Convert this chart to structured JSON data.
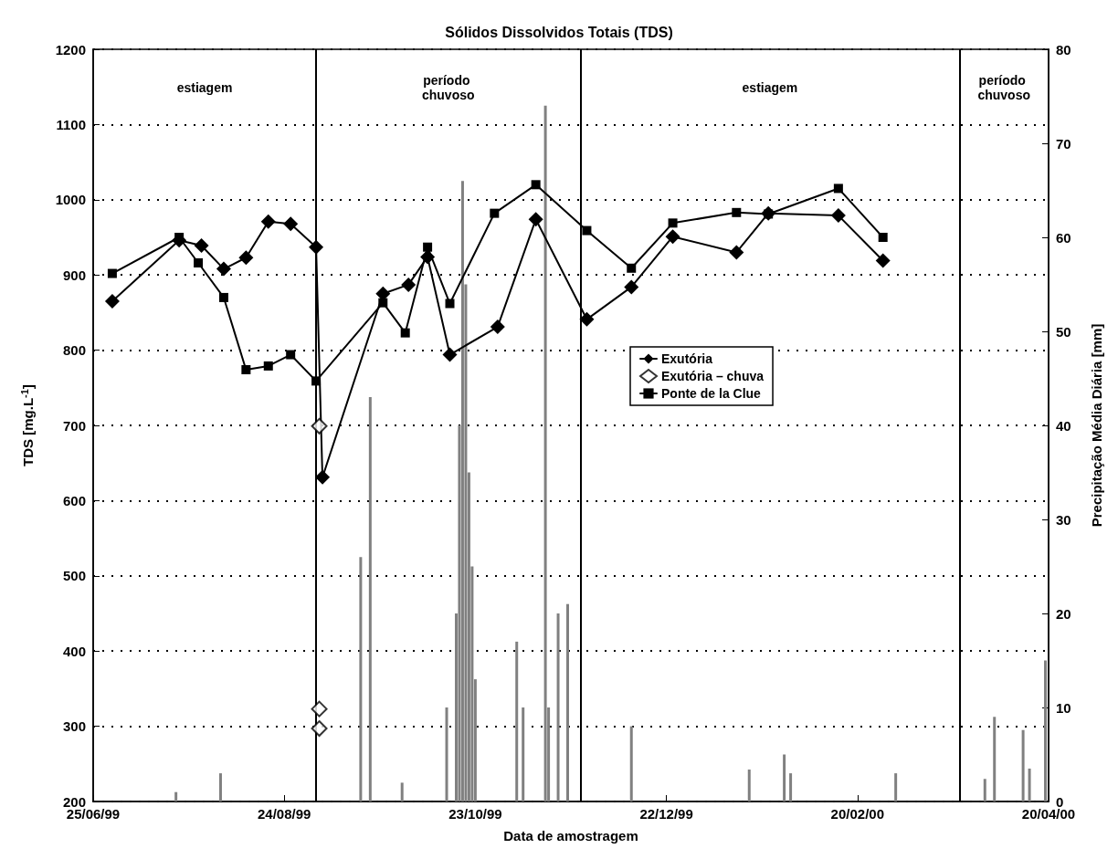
{
  "chart_data": {
    "type": "line",
    "title": "Sólidos Dissolvidos Totais (TDS)",
    "xlabel": "Data de amostragem",
    "ylabel": "TDS [mg.L$^{-1}$]",
    "y2label": "Precipitação Média Diária [mm]",
    "xlim": [
      "1999-06-25",
      "2000-04-20"
    ],
    "xticks": [
      {
        "value": "1999-06-25",
        "label": "25/06/99"
      },
      {
        "value": "1999-08-24",
        "label": "24/08/99"
      },
      {
        "value": "1999-10-23",
        "label": "23/10/99"
      },
      {
        "value": "1999-12-22",
        "label": "22/12/99"
      },
      {
        "value": "2000-02-20",
        "label": "20/02/00"
      },
      {
        "value": "2000-04-20",
        "label": "20/04/00"
      }
    ],
    "ylim": [
      200,
      1200
    ],
    "yticks": [
      200,
      300,
      400,
      500,
      600,
      700,
      800,
      900,
      1000,
      1100,
      1200
    ],
    "y2lim": [
      0,
      80
    ],
    "y2ticks": [
      0,
      10,
      20,
      30,
      40,
      50,
      60,
      70,
      80
    ],
    "grid": "y",
    "legend": "center",
    "series": [
      {
        "type": "bar",
        "axis": "y2",
        "color": "#808080",
        "x": [
          "1999-07-21",
          "1999-08-04",
          "1999-09-17",
          "1999-09-20",
          "1999-09-30",
          "1999-10-14",
          "1999-10-17",
          "1999-10-18",
          "1999-10-19",
          "1999-10-20",
          "1999-10-21",
          "1999-10-22",
          "1999-10-23",
          "1999-11-05",
          "1999-11-07",
          "1999-11-14",
          "1999-11-15",
          "1999-11-18",
          "1999-11-21",
          "1999-12-11",
          "2000-01-17",
          "2000-01-28",
          "2000-01-30",
          "2000-03-03",
          "2000-03-31",
          "2000-04-03",
          "2000-04-12",
          "2000-04-14",
          "2000-04-19"
        ],
        "values": [
          1,
          3,
          26,
          43,
          2,
          10,
          20,
          40,
          66,
          55,
          35,
          25,
          13,
          17,
          10,
          74,
          10,
          20,
          21,
          8,
          3.4,
          5,
          3,
          3,
          2.4,
          9,
          7.6,
          3.5,
          15
        ]
      },
      {
        "name": "Exutória",
        "color": "#000000",
        "marker": "diamond",
        "x": [
          "1999-07-01",
          "1999-07-22",
          "1999-07-29",
          "1999-08-05",
          "1999-08-12",
          "1999-08-19",
          "1999-08-26",
          "1999-09-03",
          "1999-09-05",
          "1999-09-24",
          "1999-10-02",
          "1999-10-08",
          "1999-10-15",
          "1999-10-30",
          "1999-11-11",
          "1999-11-27",
          "1999-12-11",
          "1999-12-24",
          "2000-01-13",
          "2000-01-23",
          "2000-02-14",
          "2000-02-28"
        ],
        "values": [
          865,
          946,
          939,
          908,
          923,
          971,
          968,
          937,
          631,
          875,
          887,
          924,
          794,
          831,
          974,
          841,
          884,
          951,
          930,
          982,
          979,
          919
        ]
      },
      {
        "type": "scatter",
        "name": "Exutória – chuva",
        "color": "#000000",
        "marker": "diamond",
        "x": [
          "1999-09-04",
          "1999-09-04",
          "1999-09-04"
        ],
        "values": [
          699,
          323,
          297
        ]
      },
      {
        "name": "Ponte de la Clue",
        "color": "#000000",
        "marker": "square",
        "x": [
          "1999-07-01",
          "1999-07-22",
          "1999-07-28",
          "1999-08-05",
          "1999-08-12",
          "1999-08-19",
          "1999-08-26",
          "1999-09-03",
          "1999-09-24",
          "1999-10-01",
          "1999-10-08",
          "1999-10-15",
          "1999-10-29",
          "1999-11-11",
          "1999-11-27",
          "1999-12-11",
          "1999-12-24",
          "2000-01-13",
          "2000-01-23",
          "2000-02-14",
          "2000-02-28"
        ],
        "values": [
          902,
          950,
          916,
          870,
          774,
          779,
          794,
          759,
          863,
          823,
          937,
          862,
          982,
          1020,
          959,
          909,
          969,
          983,
          981,
          1015,
          950
        ]
      }
    ],
    "ref_lines": [
      {
        "axis": "x",
        "value": "1999-09-03",
        "color": "#000000",
        "line_style": "solid"
      },
      {
        "axis": "x",
        "value": "1999-11-25",
        "color": "#000000",
        "line_style": "solid"
      },
      {
        "axis": "x",
        "value": "2000-03-23",
        "color": "#000000",
        "line_style": "solid"
      }
    ],
    "annotations": [
      "estiagem",
      "período chuvoso",
      "estiagem",
      "período chuvoso"
    ]
  }
}
